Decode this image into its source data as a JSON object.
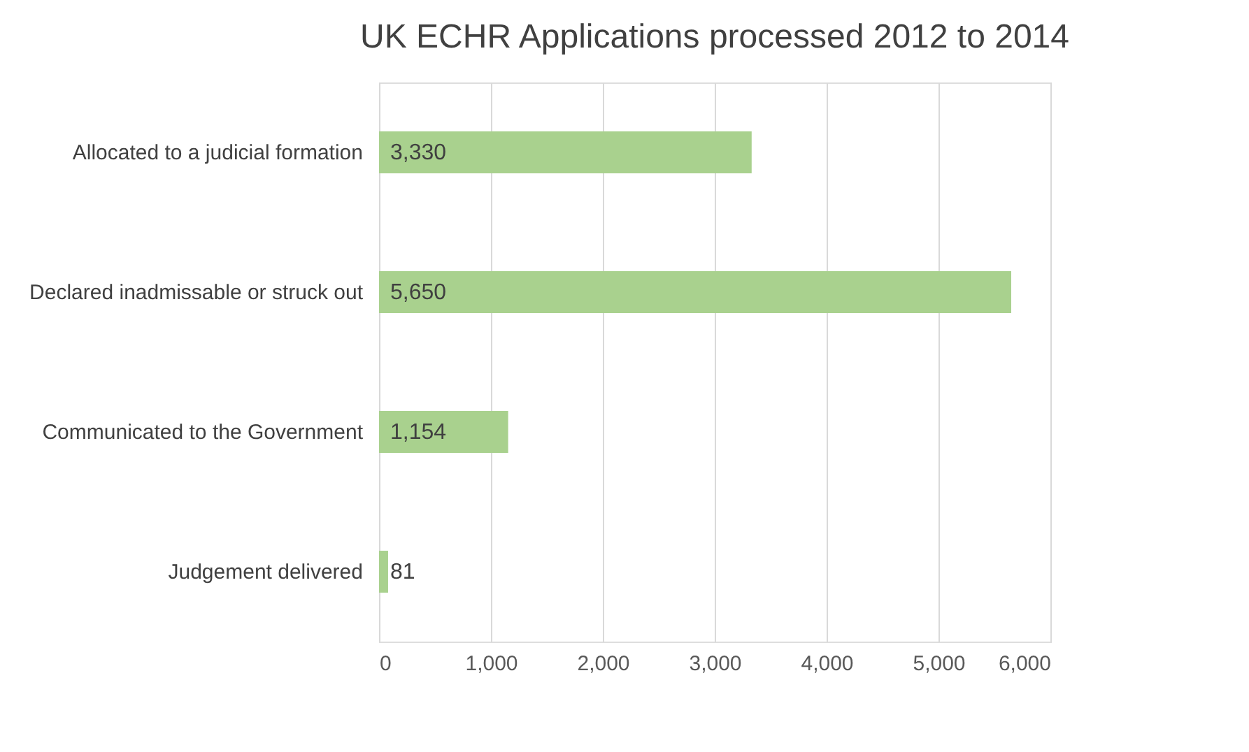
{
  "chart_data": {
    "type": "bar",
    "title": "UK ECHR Applications processed  2012 to 2014",
    "orientation": "horizontal",
    "categories": [
      "Allocated to a judicial formation",
      "Declared inadmissable or struck out",
      "Communicated to the Government",
      "Judgement delivered"
    ],
    "values": [
      3330,
      5650,
      1154,
      81
    ],
    "color": "#a9d18e",
    "value_labels": [
      "3,330",
      "5,650",
      "1,154",
      "81"
    ],
    "xlim": [
      0,
      6000
    ],
    "xticks": [
      0,
      {
        "value": 1000,
        "label": "1,000"
      },
      {
        "value": 2000,
        "label": "2,000"
      },
      {
        "value": 3000,
        "label": "3,000"
      },
      {
        "value": 4000,
        "label": "4,000"
      },
      {
        "value": 5000,
        "label": "5,000"
      },
      {
        "value": 6000,
        "label": "6,000"
      }
    ],
    "grid": "x"
  }
}
